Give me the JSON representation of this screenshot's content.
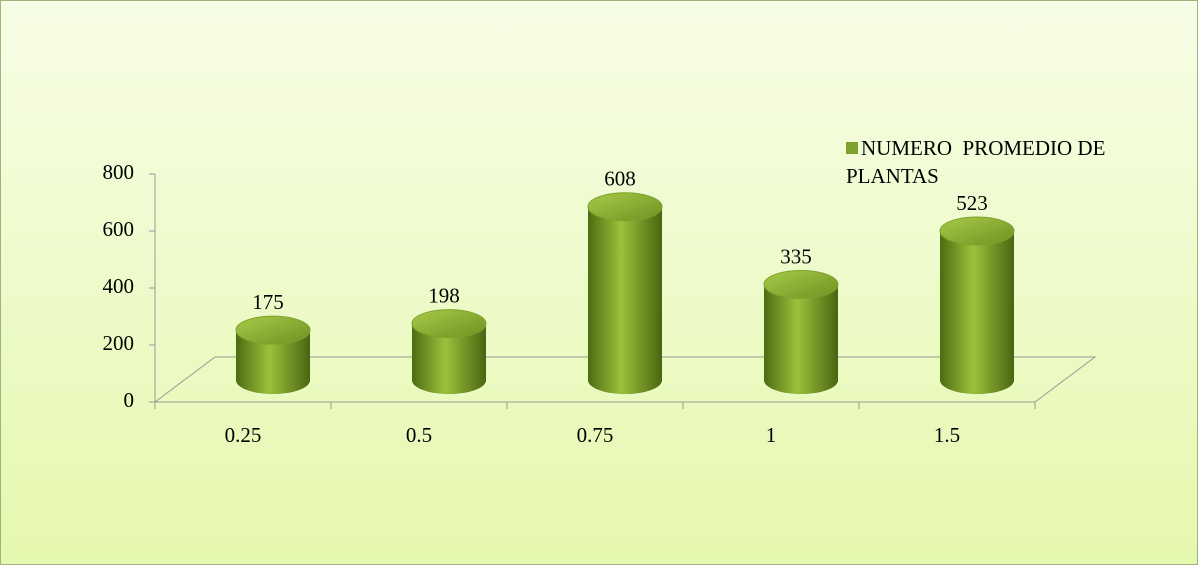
{
  "chart_data": {
    "type": "bar",
    "categories": [
      "0.25",
      "0.5",
      "0.75",
      "1",
      "1.5"
    ],
    "series": [
      {
        "name": "NUMERO  PROMEDIO DE PLANTAS",
        "color": "#7fa22c",
        "values": [
          175,
          198,
          608,
          335,
          523
        ]
      }
    ],
    "ylim": [
      0,
      800
    ],
    "yticks": [
      0,
      200,
      400,
      600,
      800
    ],
    "grid": false,
    "legend": "top-right"
  }
}
